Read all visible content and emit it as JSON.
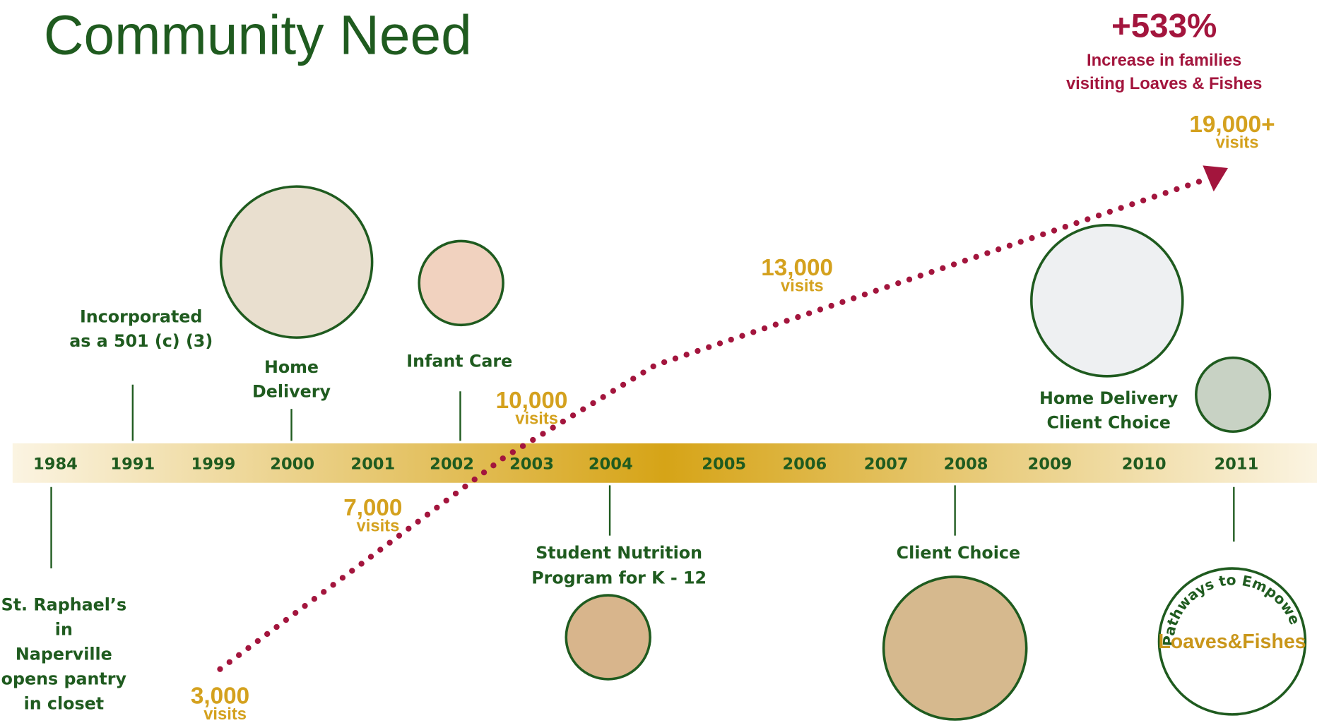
{
  "title": "Community Need",
  "headline": {
    "value": "+533%",
    "caption_lines": [
      "Increase in families",
      "visiting Loaves & Fishes"
    ]
  },
  "years": [
    "1984",
    "1991",
    "1999",
    "2000",
    "2001",
    "2002",
    "2003",
    "2004",
    "2005",
    "2006",
    "2007",
    "2008",
    "2009",
    "2010",
    "2011"
  ],
  "events": [
    {
      "label_lines": [
        "St. Raphael’s",
        "in",
        "Naperville",
        "opens pantry",
        "in closet"
      ]
    },
    {
      "label_lines": [
        "Incorporated",
        "as a 501 (c) (3)"
      ]
    },
    {
      "label_lines": [
        "Home",
        "Delivery"
      ]
    },
    {
      "label_lines": [
        "Infant Care"
      ]
    },
    {
      "label_lines": [
        "Student Nutrition",
        "Program for  K - 12"
      ]
    },
    {
      "label_lines": [
        "Client Choice"
      ]
    },
    {
      "label_lines": [
        "Home Delivery",
        "Client Choice"
      ]
    }
  ],
  "visits": [
    {
      "amount": "3,000",
      "unit": "visits"
    },
    {
      "amount": "7,000",
      "unit": "visits"
    },
    {
      "amount": "10,000",
      "unit": "visits"
    },
    {
      "amount": "13,000",
      "unit": "visits"
    },
    {
      "amount": "19,000+",
      "unit": "visits"
    }
  ],
  "logo": {
    "arc_text": "Pathways to Empowerment",
    "name": "Loaves&Fishes"
  }
}
